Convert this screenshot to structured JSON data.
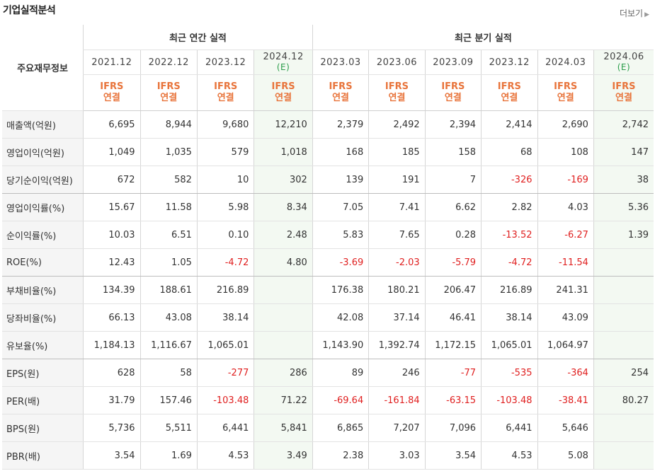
{
  "title": "기업실적분석",
  "more_label": "더보기",
  "header": {
    "row_label": "주요재무정보",
    "annual_group": "최근 연간 실적",
    "quarter_group": "최근 분기 실적",
    "annual_periods": [
      {
        "date": "2021.12",
        "est": ""
      },
      {
        "date": "2022.12",
        "est": ""
      },
      {
        "date": "2023.12",
        "est": ""
      },
      {
        "date": "2024.12",
        "est": "(E)"
      }
    ],
    "quarter_periods": [
      {
        "date": "2023.03",
        "est": ""
      },
      {
        "date": "2023.06",
        "est": ""
      },
      {
        "date": "2023.09",
        "est": ""
      },
      {
        "date": "2023.12",
        "est": ""
      },
      {
        "date": "2024.03",
        "est": ""
      },
      {
        "date": "2024.06",
        "est": "(E)"
      }
    ],
    "ifrs": "IFRS",
    "consolidated": "연결"
  },
  "rows": [
    {
      "label": "매출액(억원)",
      "values": [
        "6,695",
        "8,944",
        "9,680",
        "12,210",
        "2,379",
        "2,492",
        "2,394",
        "2,414",
        "2,690",
        "2,742"
      ]
    },
    {
      "label": "영업이익(억원)",
      "values": [
        "1,049",
        "1,035",
        "579",
        "1,018",
        "168",
        "185",
        "158",
        "68",
        "108",
        "147"
      ]
    },
    {
      "label": "당기순이익(억원)",
      "values": [
        "672",
        "582",
        "10",
        "302",
        "139",
        "191",
        "7",
        "-326",
        "-169",
        "38"
      ]
    },
    {
      "label": "영업이익률(%)",
      "values": [
        "15.67",
        "11.58",
        "5.98",
        "8.34",
        "7.05",
        "7.41",
        "6.62",
        "2.82",
        "4.03",
        "5.36"
      ]
    },
    {
      "label": "순이익률(%)",
      "values": [
        "10.03",
        "6.51",
        "0.10",
        "2.48",
        "5.83",
        "7.65",
        "0.28",
        "-13.52",
        "-6.27",
        "1.39"
      ]
    },
    {
      "label": "ROE(%)",
      "values": [
        "12.43",
        "1.05",
        "-4.72",
        "4.80",
        "-3.69",
        "-2.03",
        "-5.79",
        "-4.72",
        "-11.54",
        ""
      ]
    },
    {
      "label": "부채비율(%)",
      "values": [
        "134.39",
        "188.61",
        "216.89",
        "",
        "176.38",
        "180.21",
        "206.47",
        "216.89",
        "241.31",
        ""
      ]
    },
    {
      "label": "당좌비율(%)",
      "values": [
        "66.13",
        "43.08",
        "38.14",
        "",
        "42.08",
        "37.14",
        "46.41",
        "38.14",
        "43.09",
        ""
      ]
    },
    {
      "label": "유보율(%)",
      "values": [
        "1,184.13",
        "1,116.67",
        "1,065.01",
        "",
        "1,143.90",
        "1,392.74",
        "1,172.15",
        "1,065.01",
        "1,064.97",
        ""
      ]
    },
    {
      "label": "EPS(원)",
      "values": [
        "628",
        "58",
        "-277",
        "286",
        "89",
        "246",
        "-77",
        "-535",
        "-364",
        "254"
      ]
    },
    {
      "label": "PER(배)",
      "values": [
        "31.79",
        "157.46",
        "-103.48",
        "71.22",
        "-69.64",
        "-161.84",
        "-63.15",
        "-103.48",
        "-38.41",
        "80.27"
      ]
    },
    {
      "label": "BPS(원)",
      "values": [
        "5,736",
        "5,511",
        "6,441",
        "5,841",
        "6,865",
        "7,207",
        "7,096",
        "6,441",
        "5,646",
        ""
      ]
    },
    {
      "label": "PBR(배)",
      "values": [
        "3.54",
        "1.69",
        "4.53",
        "3.49",
        "2.38",
        "3.03",
        "3.54",
        "4.53",
        "5.08",
        ""
      ]
    }
  ],
  "colors": {
    "negative": "#e02020",
    "ifrs": "#e8743b",
    "estimate": "#2a9d4a",
    "estimate_bg": "#f3f9f2"
  }
}
